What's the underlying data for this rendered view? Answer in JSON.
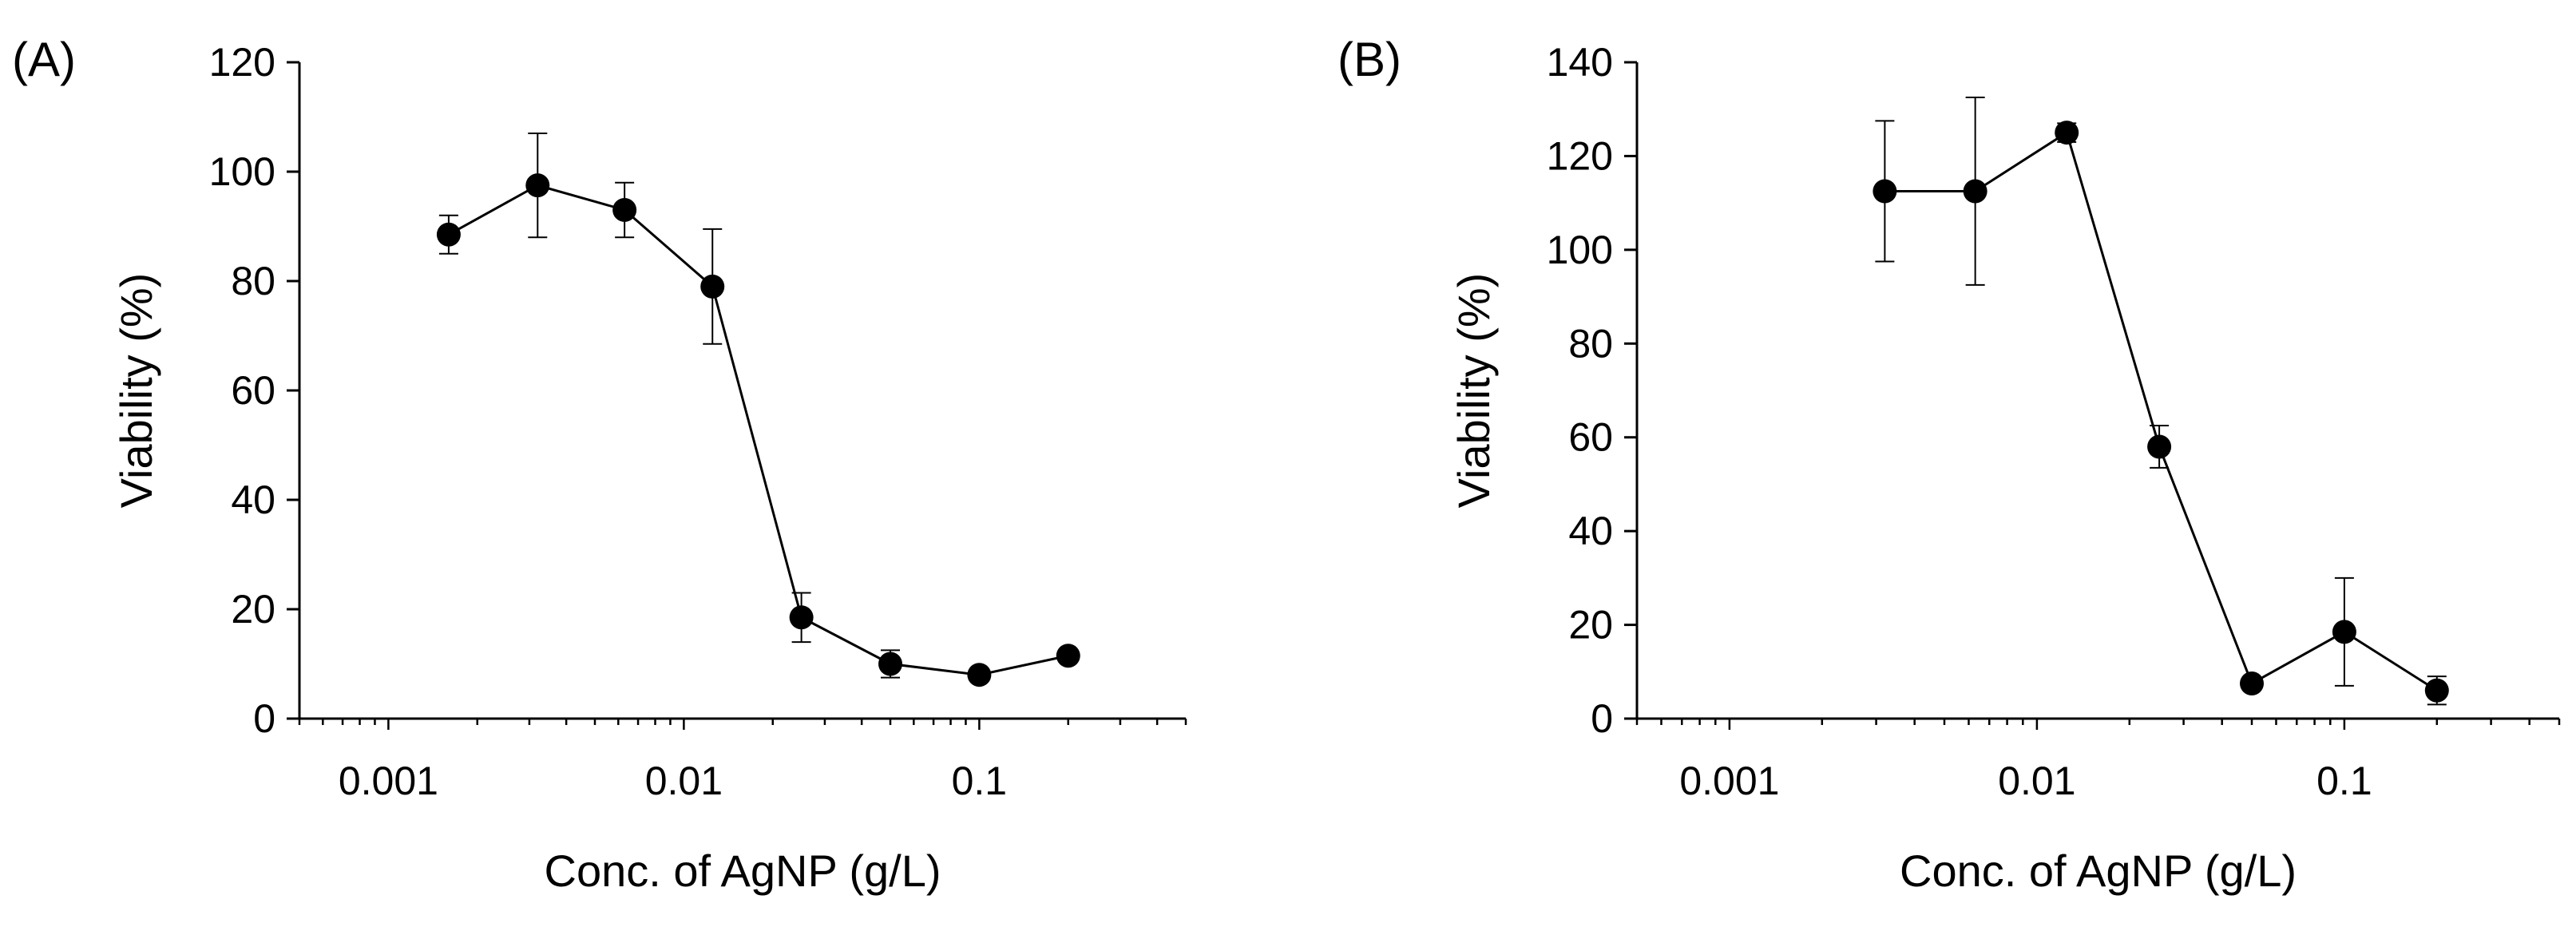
{
  "chart_data": [
    {
      "type": "line",
      "panel_label": "(A)",
      "xlabel": "Conc. of AgNP (g/L)",
      "ylabel": "Viability (%)",
      "xscale": "log",
      "xlim": [
        0.0005,
        0.5
      ],
      "ylim": [
        0,
        120
      ],
      "yticks": [
        0,
        20,
        40,
        60,
        80,
        100,
        120
      ],
      "ytick_labels": [
        "0",
        "20",
        "40",
        "60",
        "80",
        "100",
        "120"
      ],
      "xticks": [
        0.001,
        0.01,
        0.1
      ],
      "xtick_labels": [
        "0.001",
        "0.01",
        "0.1"
      ],
      "series": [
        {
          "name": "Viability",
          "x": [
            0.0016,
            0.0032,
            0.0063,
            0.0125,
            0.025,
            0.05,
            0.1,
            0.2
          ],
          "values": [
            88.5,
            97.5,
            93,
            79,
            18.5,
            10,
            8,
            11.5
          ],
          "errors": [
            3.5,
            9.5,
            5,
            10.5,
            4.5,
            2.5,
            1,
            1
          ]
        }
      ]
    },
    {
      "type": "line",
      "panel_label": "(B)",
      "xlabel": "Conc. of AgNP (g/L)",
      "ylabel": "Viability (%)",
      "xscale": "log",
      "xlim": [
        0.0005,
        0.5
      ],
      "ylim": [
        0,
        140
      ],
      "yticks": [
        0,
        20,
        40,
        60,
        80,
        100,
        120,
        140
      ],
      "ytick_labels": [
        "0",
        "20",
        "40",
        "60",
        "80",
        "100",
        "120",
        "140"
      ],
      "xticks": [
        0.001,
        0.01,
        0.1
      ],
      "xtick_labels": [
        "0.001",
        "0.01",
        "0.1"
      ],
      "series": [
        {
          "name": "Viability",
          "x": [
            0.0032,
            0.0063,
            0.0125,
            0.025,
            0.05,
            0.1,
            0.2
          ],
          "values": [
            112.5,
            112.5,
            125,
            58,
            7.5,
            18.5,
            6
          ],
          "errors": [
            15,
            20,
            2,
            4.5,
            1,
            11.5,
            3
          ]
        }
      ]
    }
  ]
}
